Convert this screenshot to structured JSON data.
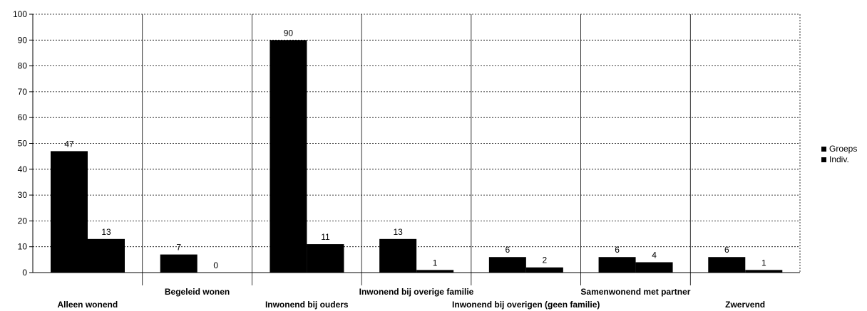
{
  "chart_data": {
    "type": "bar",
    "categories": [
      "Alleen wonend",
      "Begeleid wonen",
      "Inwonend bij ouders",
      "Inwonend bij overige familie",
      "Inwonend bij overigen (geen familie)",
      "Samenwonend met partner",
      "Zwervend"
    ],
    "series": [
      {
        "name": "Groeps",
        "values": [
          47,
          7,
          90,
          13,
          6,
          6,
          6
        ]
      },
      {
        "name": "Indiv.",
        "values": [
          13,
          0,
          11,
          1,
          2,
          4,
          1
        ]
      }
    ],
    "ylim": [
      0,
      100
    ],
    "yticks": [
      "0",
      "10",
      "20",
      "30",
      "40",
      "50",
      "60",
      "70",
      "80",
      "90",
      "100"
    ],
    "grid": true,
    "legend_position": "right",
    "colors": {
      "bars": "#000000",
      "grid": "#000000",
      "background": "#ffffff"
    }
  }
}
